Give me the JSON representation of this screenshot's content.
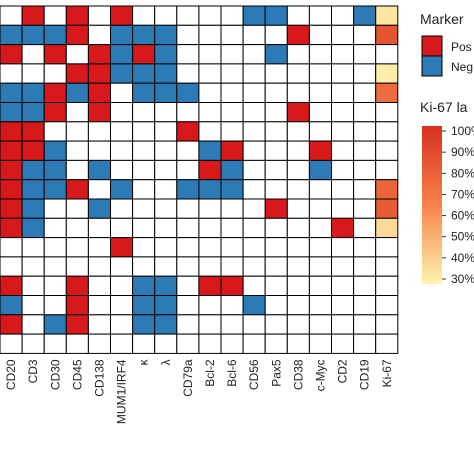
{
  "chart_data": {
    "type": "heatmap",
    "title": "",
    "xlabel": "",
    "ylabel": "",
    "categories": [
      "CD20",
      "CD3",
      "CD30",
      "CD45",
      "CD138",
      "MUM1/IRF4",
      "κ",
      "λ",
      "CD79a",
      "Bcl-2",
      "Bcl-6",
      "CD56",
      "Pax5",
      "CD38",
      "c-Myc",
      "CD2",
      "CD19",
      "Ki-67"
    ],
    "rows": [
      "WPWPWPWWWWWNNWWWNK",
      "NNNPWNNNWWWWWPWWWK",
      "PWPWPNPNWWWWNWWWWK",
      "WWWPPNNNWWWWWWWWWK",
      "NNPNPWNNNWWWWWWWWK",
      "NNPWPWWWWWWWWPWWWW",
      "PPWWWWWWPWWWWWWWWW",
      "PPNWWWWWWNPWWWPWWW",
      "PNNWNWWWWPNWWWNWWW",
      "PNNPWNWWNNNWWWWWWK",
      "PNWWNWWWWWWWPWWWWK",
      "PNWWWWWWWWWWWWWPWK",
      "WWWWWPWWWWWWWWWWWW",
      "WWWWWWWWWWWWWWWWWW",
      "PWWPWWNNWPPWWWWWWW",
      "NWWPWWNNWWWNWWWWWW",
      "PWNPWWNNWWWWWWWWWW",
      "WWWWWWWWWWWWWWWWWW"
    ],
    "ki67_values": [
      35,
      85,
      null,
      32,
      75,
      null,
      null,
      null,
      null,
      78,
      82,
      38,
      null,
      null,
      null,
      null,
      null,
      null
    ],
    "legend_marker": {
      "title": "Marker",
      "items": [
        {
          "label": "Pos",
          "color": "#d7191c"
        },
        {
          "label": "Neg",
          "color": "#2c7bb6"
        }
      ]
    },
    "legend_ki67": {
      "title": "Ki-67 la",
      "ticks": [
        "100%",
        "90%",
        "80%",
        "70%",
        "60%",
        "50%",
        "40%",
        "30%"
      ],
      "range": [
        30,
        100
      ],
      "low_color": "#fff3b0",
      "high_color": "#d7301f"
    },
    "colors": {
      "positive": "#d7191c",
      "negative": "#2c7bb6",
      "empty": "#ffffff",
      "grid": "#000000"
    }
  }
}
